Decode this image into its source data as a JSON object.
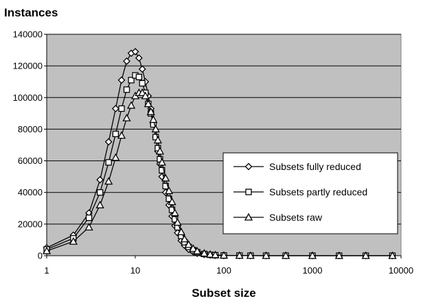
{
  "chart_data": {
    "type": "line",
    "title": "",
    "ylabel": "Instances",
    "xlabel": "Subset size",
    "x_scale": "log",
    "xlim": [
      1,
      10000
    ],
    "ylim": [
      0,
      140000
    ],
    "x_ticks": [
      1,
      10,
      100,
      1000,
      10000
    ],
    "y_ticks": [
      0,
      20000,
      40000,
      60000,
      80000,
      100000,
      120000,
      140000
    ],
    "grid": true,
    "legend_position": "right",
    "series": [
      {
        "name": "Subsets fully reduced",
        "marker": "diamond",
        "x": [
          1,
          2,
          3,
          4,
          5,
          6,
          7,
          8,
          9,
          10,
          11,
          12,
          13,
          14,
          15,
          16,
          17,
          18,
          19,
          20,
          22,
          24,
          26,
          28,
          30,
          33,
          36,
          40,
          45,
          50,
          60,
          70,
          80,
          100,
          150,
          200,
          300,
          500,
          1000,
          2000,
          4000,
          8000
        ],
        "y": [
          5000,
          13000,
          27000,
          48000,
          72000,
          93000,
          111000,
          123000,
          128000,
          129000,
          125000,
          118000,
          110000,
          101000,
          93000,
          84000,
          75000,
          66000,
          58000,
          50000,
          40000,
          32000,
          25000,
          19000,
          14500,
          9500,
          6500,
          4000,
          2500,
          1500,
          800,
          400,
          200,
          100,
          50,
          25,
          10,
          5,
          3,
          2,
          1,
          1
        ]
      },
      {
        "name": "Subsets partly reduced",
        "marker": "square",
        "x": [
          1,
          2,
          3,
          4,
          5,
          6,
          7,
          8,
          9,
          10,
          11,
          12,
          13,
          14,
          15,
          16,
          17,
          18,
          19,
          20,
          22,
          24,
          26,
          28,
          30,
          33,
          36,
          40,
          45,
          50,
          60,
          70,
          80,
          100,
          150,
          200,
          300,
          500,
          1000,
          2000,
          4000,
          8000
        ],
        "y": [
          4000,
          11000,
          24000,
          40000,
          59000,
          77000,
          93000,
          105000,
          111000,
          114000,
          113000,
          109000,
          103000,
          96000,
          90000,
          83000,
          75000,
          68000,
          61000,
          54000,
          44000,
          36000,
          29000,
          23000,
          18000,
          12500,
          8500,
          5500,
          3500,
          2200,
          1100,
          550,
          300,
          150,
          60,
          30,
          12,
          6,
          3,
          2,
          1,
          1
        ]
      },
      {
        "name": "Subsets raw",
        "marker": "triangle",
        "x": [
          1,
          2,
          3,
          4,
          5,
          6,
          7,
          8,
          9,
          10,
          11,
          12,
          13,
          14,
          15,
          16,
          17,
          18,
          19,
          20,
          22,
          24,
          26,
          28,
          30,
          33,
          36,
          40,
          45,
          50,
          60,
          70,
          80,
          100,
          150,
          200,
          300,
          500,
          1000,
          2000,
          4000,
          8000
        ],
        "y": [
          3000,
          9000,
          18000,
          32000,
          47000,
          62000,
          76000,
          87000,
          95000,
          101000,
          103000,
          103000,
          101000,
          96000,
          91000,
          86000,
          80000,
          73000,
          66000,
          59000,
          49000,
          41000,
          34000,
          27000,
          21000,
          15000,
          10500,
          7000,
          4500,
          2900,
          1500,
          800,
          450,
          200,
          80,
          40,
          15,
          7,
          3,
          2,
          1,
          1
        ]
      }
    ]
  }
}
